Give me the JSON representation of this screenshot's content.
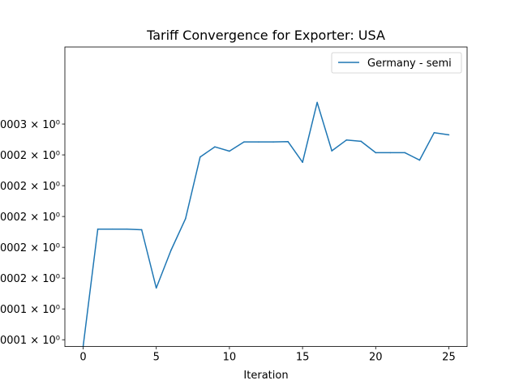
{
  "chart_data": {
    "type": "line",
    "title": "Tariff Convergence for Exporter: USA",
    "xlabel": "Iteration",
    "ylabel": "",
    "xlim": [
      -1.25,
      26.25
    ],
    "ylim": [
      -0.12,
      9.6
    ],
    "grid": false,
    "legend_placement": "top-right",
    "line_color": "#1f77b4",
    "x_ticks": [
      0,
      5,
      10,
      15,
      20,
      25
    ],
    "x_tick_labels": [
      "0",
      "5",
      "10",
      "15",
      "20",
      "25"
    ],
    "y_ticks": [
      0.1,
      1.1,
      2.1,
      3.1,
      4.1,
      5.1,
      6.1,
      7.1
    ],
    "y_tick_labels": [
      "0001 × 10⁰",
      "0001 × 10⁰",
      "0002 × 10⁰",
      "0002 × 10⁰",
      "0002 × 10⁰",
      "0002 × 10⁰",
      "0002 × 10⁰",
      "0003 × 10⁰"
    ],
    "series": [
      {
        "name": "Germany - semi",
        "x": [
          0,
          1,
          2,
          3,
          4,
          5,
          6,
          7,
          8,
          9,
          10,
          11,
          12,
          13,
          14,
          15,
          16,
          17,
          18,
          19,
          20,
          21,
          22,
          23,
          24,
          25
        ],
        "y": [
          -0.12,
          3.69,
          3.69,
          3.69,
          3.67,
          1.78,
          3.0,
          4.03,
          6.03,
          6.36,
          6.22,
          6.52,
          6.52,
          6.52,
          6.53,
          5.86,
          7.8,
          6.23,
          6.58,
          6.54,
          6.17,
          6.17,
          6.17,
          5.93,
          6.82,
          6.75
        ]
      }
    ]
  }
}
